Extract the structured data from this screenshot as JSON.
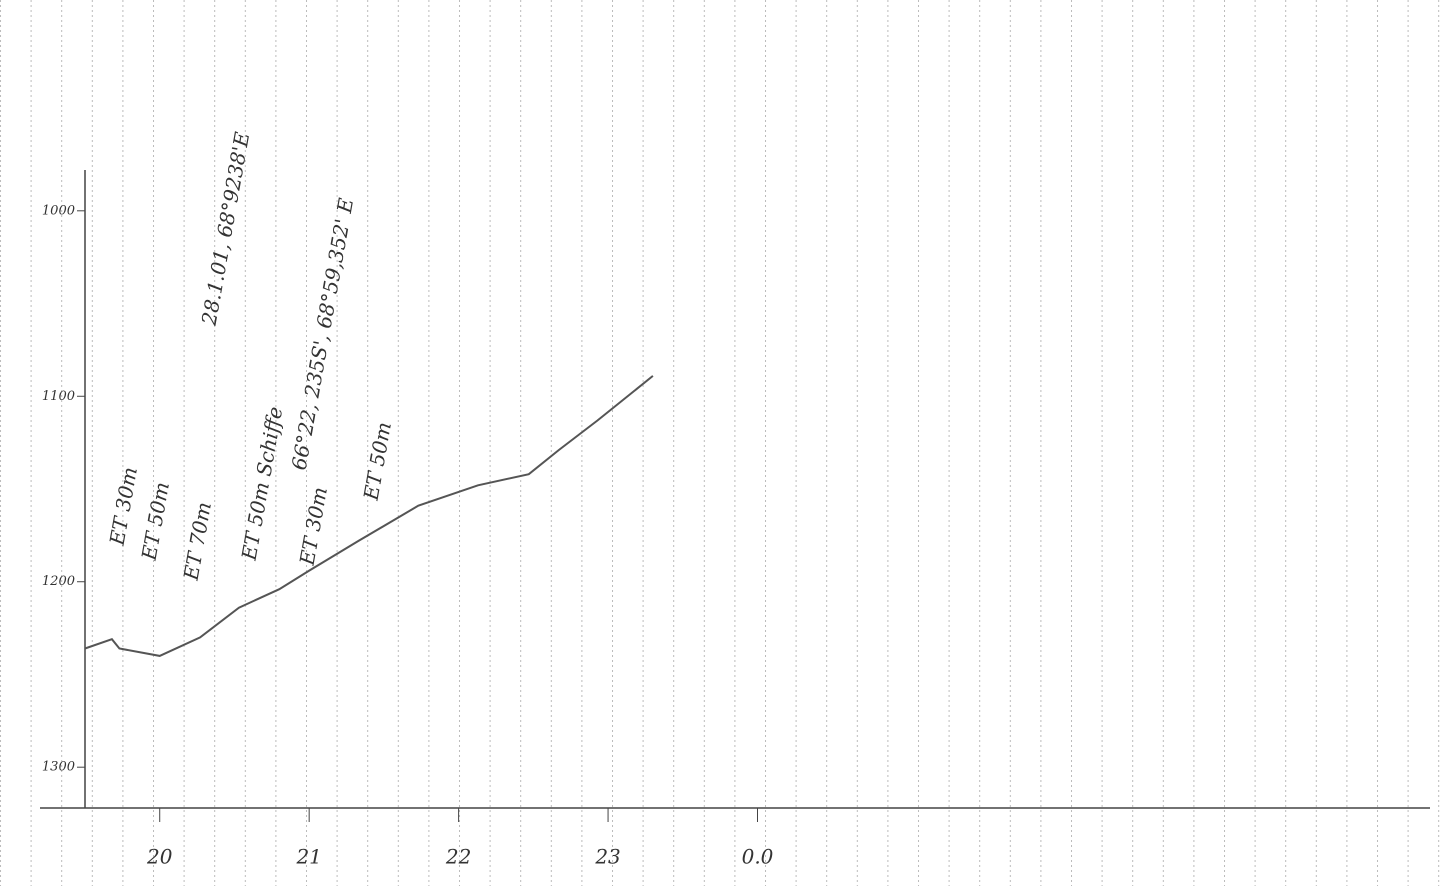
{
  "chart_data": {
    "type": "line",
    "x": [
      19.5,
      19.68,
      19.73,
      20.0,
      20.27,
      20.53,
      20.8,
      21.0,
      21.33,
      21.73,
      22.13,
      22.47,
      22.67,
      22.93,
      23.3
    ],
    "series": [
      {
        "color": "#555555",
        "values": [
          1236,
          1231,
          1236,
          1240,
          1230,
          1214,
          1204,
          1194,
          1178,
          1159,
          1148,
          1142,
          1129,
          1113,
          1089
        ]
      }
    ],
    "xlim": [
      19.5,
      28.5
    ],
    "xticks": [
      20,
      21,
      22,
      23,
      {
        "value": 24,
        "label": "0.0"
      }
    ],
    "ylim": [
      1322,
      978
    ],
    "yticks": [
      1000,
      1100,
      1200,
      1300
    ],
    "annotations": [
      "ET 30m",
      "ET 50m",
      "ET 70m",
      "ET 50m Schiffe",
      "66°22, 235S', 68°59,352' E",
      "ET 30m",
      "ET 50m",
      "28.1.01, 68°9238'E"
    ]
  }
}
